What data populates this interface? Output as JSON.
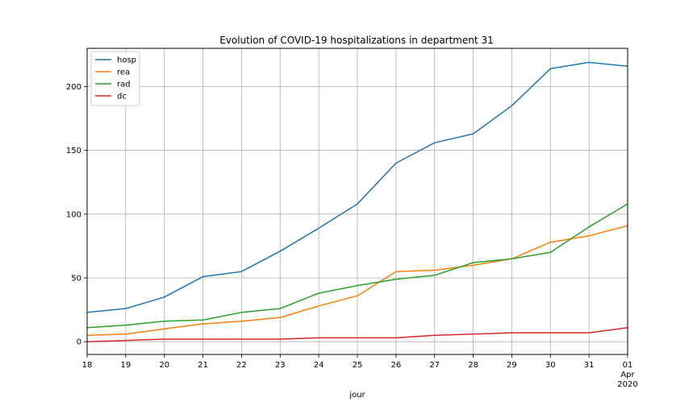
{
  "chart_data": {
    "type": "line",
    "title": "Evolution of COVID-19 hospitalizations in department 31",
    "xlabel": "jour",
    "ylabel": "",
    "x": [
      "2020-03-18",
      "2020-03-19",
      "2020-03-20",
      "2020-03-21",
      "2020-03-22",
      "2020-03-23",
      "2020-03-24",
      "2020-03-25",
      "2020-03-26",
      "2020-03-27",
      "2020-03-28",
      "2020-03-29",
      "2020-03-30",
      "2020-03-31",
      "2020-04-01"
    ],
    "x_tick_labels": [
      "18",
      "19",
      "20",
      "21",
      "22",
      "23",
      "24",
      "25",
      "26",
      "27",
      "28",
      "29",
      "30",
      "31",
      "01"
    ],
    "x_secondary_label": [
      "Apr",
      "2020"
    ],
    "ylim": [
      -10,
      230
    ],
    "y_ticks": [
      0,
      50,
      100,
      150,
      200
    ],
    "grid": true,
    "legend_position": "upper-left",
    "series": [
      {
        "name": "hosp",
        "color": "#1f77b4",
        "values": [
          23,
          26,
          35,
          51,
          55,
          71,
          89,
          108,
          140,
          156,
          163,
          185,
          214,
          219,
          216
        ]
      },
      {
        "name": "rea",
        "color": "#ff7f0e",
        "values": [
          5,
          6,
          10,
          14,
          16,
          19,
          28,
          36,
          55,
          56,
          60,
          65,
          78,
          83,
          91
        ]
      },
      {
        "name": "rad",
        "color": "#2ca02c",
        "values": [
          11,
          13,
          16,
          17,
          23,
          26,
          38,
          44,
          49,
          52,
          62,
          65,
          70,
          90,
          108
        ]
      },
      {
        "name": "dc",
        "color": "#d62728",
        "values": [
          0,
          1,
          2,
          2,
          2,
          2,
          3,
          3,
          3,
          5,
          6,
          7,
          7,
          7,
          11
        ]
      }
    ]
  }
}
